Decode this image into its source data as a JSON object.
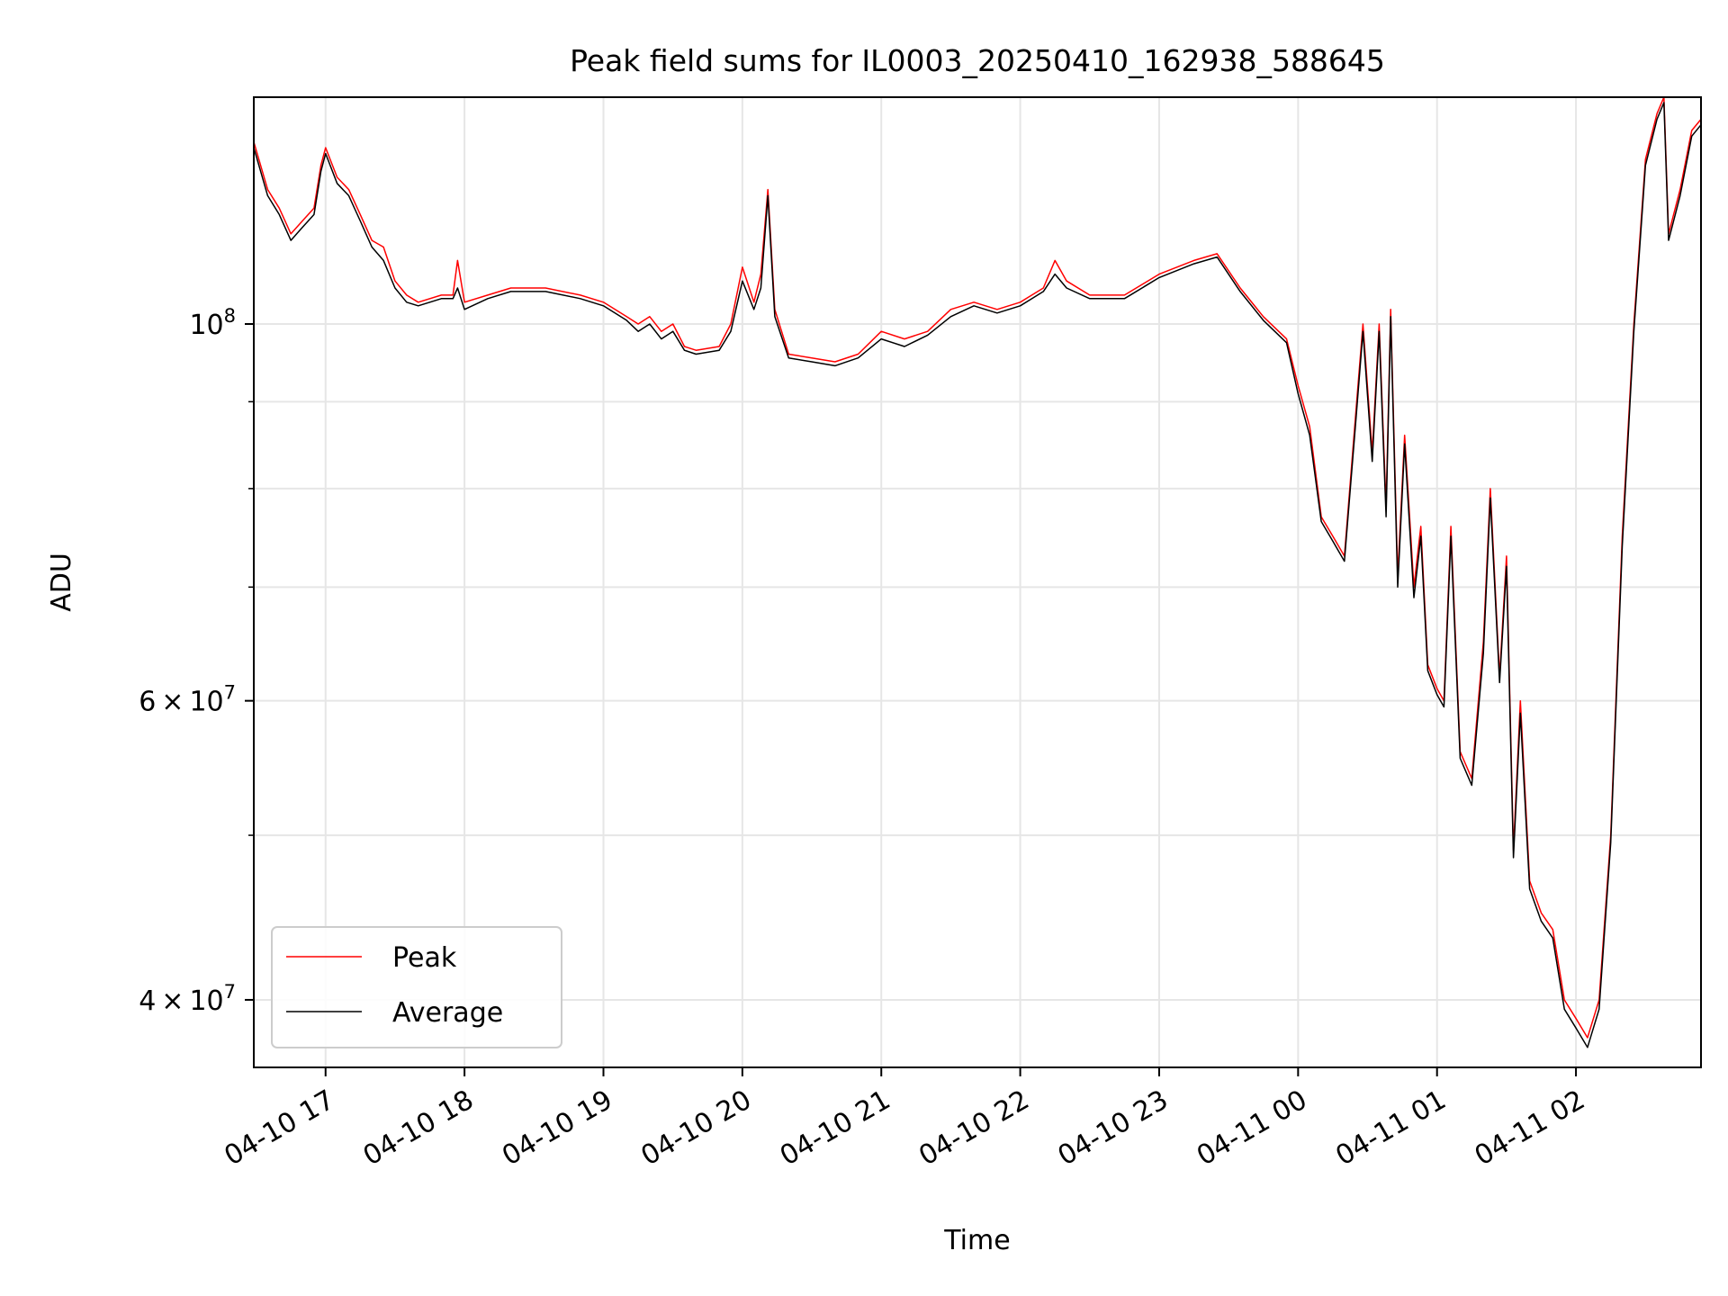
{
  "chart_data": {
    "type": "line",
    "title": "Peak field sums for IL0003_20250410_162938_588645",
    "xlabel": "Time",
    "ylabel": "ADU",
    "yscale": "log",
    "grid": true,
    "legend_position": "lower-left",
    "xlim": [
      "2025-04-10 16:29",
      "2025-04-11 02:54"
    ],
    "ylim": [
      36500000,
      136000000
    ],
    "xticks": [
      "2025-04-10 17:00",
      "2025-04-10 18:00",
      "2025-04-10 19:00",
      "2025-04-10 20:00",
      "2025-04-10 21:00",
      "2025-04-10 22:00",
      "2025-04-10 23:00",
      "2025-04-11 00:00",
      "2025-04-11 01:00",
      "2025-04-11 02:00"
    ],
    "xtick_labels": [
      "04-10 17",
      "04-10 18",
      "04-10 19",
      "04-10 20",
      "04-10 21",
      "04-10 22",
      "04-10 23",
      "04-11 00",
      "04-11 01",
      "04-11 02"
    ],
    "yticks_major": [
      {
        "value": 100000000,
        "base": "10",
        "exp": "8"
      },
      {
        "value": 60000000,
        "mant": "6",
        "base": "10",
        "exp": "7"
      },
      {
        "value": 40000000,
        "mant": "4",
        "base": "10",
        "exp": "7"
      }
    ],
    "yticks_minor": [
      50000000,
      70000000,
      80000000,
      90000000
    ],
    "series": [
      {
        "name": "Peak",
        "color": "#ff0000",
        "points": [
          [
            "2025-04-10 16:29",
            128000000
          ],
          [
            "2025-04-10 16:35",
            120000000
          ],
          [
            "2025-04-10 16:40",
            117000000
          ],
          [
            "2025-04-10 16:45",
            113000000
          ],
          [
            "2025-04-10 16:50",
            115000000
          ],
          [
            "2025-04-10 16:55",
            117000000
          ],
          [
            "2025-04-10 16:58",
            124000000
          ],
          [
            "2025-04-10 17:00",
            127000000
          ],
          [
            "2025-04-10 17:05",
            122000000
          ],
          [
            "2025-04-10 17:10",
            120000000
          ],
          [
            "2025-04-10 17:15",
            116000000
          ],
          [
            "2025-04-10 17:20",
            112000000
          ],
          [
            "2025-04-10 17:25",
            111000000
          ],
          [
            "2025-04-10 17:30",
            106000000
          ],
          [
            "2025-04-10 17:35",
            104000000
          ],
          [
            "2025-04-10 17:40",
            103000000
          ],
          [
            "2025-04-10 17:50",
            104000000
          ],
          [
            "2025-04-10 17:55",
            104000000
          ],
          [
            "2025-04-10 17:57",
            109000000
          ],
          [
            "2025-04-10 18:00",
            103000000
          ],
          [
            "2025-04-10 18:10",
            104000000
          ],
          [
            "2025-04-10 18:20",
            105000000
          ],
          [
            "2025-04-10 18:35",
            105000000
          ],
          [
            "2025-04-10 18:50",
            104000000
          ],
          [
            "2025-04-10 19:00",
            103000000
          ],
          [
            "2025-04-10 19:10",
            101000000
          ],
          [
            "2025-04-10 19:15",
            100000000
          ],
          [
            "2025-04-10 19:20",
            101000000
          ],
          [
            "2025-04-10 19:25",
            99000000
          ],
          [
            "2025-04-10 19:30",
            100000000
          ],
          [
            "2025-04-10 19:35",
            97000000
          ],
          [
            "2025-04-10 19:40",
            96500000
          ],
          [
            "2025-04-10 19:50",
            97000000
          ],
          [
            "2025-04-10 19:55",
            100000000
          ],
          [
            "2025-04-10 20:00",
            108000000
          ],
          [
            "2025-04-10 20:05",
            103000000
          ],
          [
            "2025-04-10 20:08",
            107000000
          ],
          [
            "2025-04-10 20:11",
            120000000
          ],
          [
            "2025-04-10 20:14",
            102000000
          ],
          [
            "2025-04-10 20:20",
            96000000
          ],
          [
            "2025-04-10 20:30",
            95500000
          ],
          [
            "2025-04-10 20:40",
            95000000
          ],
          [
            "2025-04-10 20:50",
            96000000
          ],
          [
            "2025-04-10 21:00",
            99000000
          ],
          [
            "2025-04-10 21:10",
            98000000
          ],
          [
            "2025-04-10 21:20",
            99000000
          ],
          [
            "2025-04-10 21:30",
            102000000
          ],
          [
            "2025-04-10 21:40",
            103000000
          ],
          [
            "2025-04-10 21:50",
            102000000
          ],
          [
            "2025-04-10 22:00",
            103000000
          ],
          [
            "2025-04-10 22:10",
            105000000
          ],
          [
            "2025-04-10 22:15",
            109000000
          ],
          [
            "2025-04-10 22:20",
            106000000
          ],
          [
            "2025-04-10 22:30",
            104000000
          ],
          [
            "2025-04-10 22:45",
            104000000
          ],
          [
            "2025-04-10 23:00",
            107000000
          ],
          [
            "2025-04-10 23:15",
            109000000
          ],
          [
            "2025-04-10 23:25",
            110000000
          ],
          [
            "2025-04-10 23:35",
            105000000
          ],
          [
            "2025-04-10 23:45",
            101000000
          ],
          [
            "2025-04-10 23:55",
            98000000
          ],
          [
            "2025-04-11 00:00",
            92000000
          ],
          [
            "2025-04-11 00:05",
            87000000
          ],
          [
            "2025-04-11 00:10",
            77000000
          ],
          [
            "2025-04-11 00:15",
            75000000
          ],
          [
            "2025-04-11 00:20",
            73000000
          ],
          [
            "2025-04-11 00:25",
            89000000
          ],
          [
            "2025-04-11 00:28",
            100000000
          ],
          [
            "2025-04-11 00:32",
            84000000
          ],
          [
            "2025-04-11 00:35",
            100000000
          ],
          [
            "2025-04-11 00:38",
            78000000
          ],
          [
            "2025-04-11 00:40",
            102000000
          ],
          [
            "2025-04-11 00:43",
            71000000
          ],
          [
            "2025-04-11 00:46",
            86000000
          ],
          [
            "2025-04-11 00:50",
            70000000
          ],
          [
            "2025-04-11 00:53",
            76000000
          ],
          [
            "2025-04-11 00:56",
            63000000
          ],
          [
            "2025-04-11 01:00",
            61000000
          ],
          [
            "2025-04-11 01:03",
            60000000
          ],
          [
            "2025-04-11 01:06",
            76000000
          ],
          [
            "2025-04-11 01:10",
            56000000
          ],
          [
            "2025-04-11 01:15",
            54000000
          ],
          [
            "2025-04-11 01:20",
            65000000
          ],
          [
            "2025-04-11 01:23",
            80000000
          ],
          [
            "2025-04-11 01:27",
            62000000
          ],
          [
            "2025-04-11 01:30",
            73000000
          ],
          [
            "2025-04-11 01:33",
            49000000
          ],
          [
            "2025-04-11 01:36",
            60000000
          ],
          [
            "2025-04-11 01:40",
            47000000
          ],
          [
            "2025-04-11 01:45",
            45000000
          ],
          [
            "2025-04-11 01:50",
            44000000
          ],
          [
            "2025-04-11 01:55",
            40000000
          ],
          [
            "2025-04-11 02:00",
            39000000
          ],
          [
            "2025-04-11 02:05",
            38000000
          ],
          [
            "2025-04-11 02:10",
            40000000
          ],
          [
            "2025-04-11 02:15",
            50000000
          ],
          [
            "2025-04-11 02:20",
            75000000
          ],
          [
            "2025-04-11 02:25",
            100000000
          ],
          [
            "2025-04-11 02:30",
            125000000
          ],
          [
            "2025-04-11 02:35",
            133000000
          ],
          [
            "2025-04-11 02:38",
            136000000
          ],
          [
            "2025-04-11 02:40",
            113000000
          ],
          [
            "2025-04-11 02:45",
            120000000
          ],
          [
            "2025-04-11 02:50",
            130000000
          ],
          [
            "2025-04-11 02:54",
            132000000
          ]
        ]
      },
      {
        "name": "Average",
        "color": "#000000",
        "points": [
          [
            "2025-04-10 16:29",
            127000000
          ],
          [
            "2025-04-10 16:35",
            119000000
          ],
          [
            "2025-04-10 16:40",
            116000000
          ],
          [
            "2025-04-10 16:45",
            112000000
          ],
          [
            "2025-04-10 16:50",
            114000000
          ],
          [
            "2025-04-10 16:55",
            116000000
          ],
          [
            "2025-04-10 16:58",
            123000000
          ],
          [
            "2025-04-10 17:00",
            126000000
          ],
          [
            "2025-04-10 17:05",
            121000000
          ],
          [
            "2025-04-10 17:10",
            119000000
          ],
          [
            "2025-04-10 17:15",
            115000000
          ],
          [
            "2025-04-10 17:20",
            111000000
          ],
          [
            "2025-04-10 17:25",
            109000000
          ],
          [
            "2025-04-10 17:30",
            105000000
          ],
          [
            "2025-04-10 17:35",
            103000000
          ],
          [
            "2025-04-10 17:40",
            102500000
          ],
          [
            "2025-04-10 17:50",
            103500000
          ],
          [
            "2025-04-10 17:55",
            103500000
          ],
          [
            "2025-04-10 17:57",
            105000000
          ],
          [
            "2025-04-10 18:00",
            102000000
          ],
          [
            "2025-04-10 18:10",
            103500000
          ],
          [
            "2025-04-10 18:20",
            104500000
          ],
          [
            "2025-04-10 18:35",
            104500000
          ],
          [
            "2025-04-10 18:50",
            103500000
          ],
          [
            "2025-04-10 19:00",
            102500000
          ],
          [
            "2025-04-10 19:10",
            100500000
          ],
          [
            "2025-04-10 19:15",
            99000000
          ],
          [
            "2025-04-10 19:20",
            100000000
          ],
          [
            "2025-04-10 19:25",
            98000000
          ],
          [
            "2025-04-10 19:30",
            99000000
          ],
          [
            "2025-04-10 19:35",
            96500000
          ],
          [
            "2025-04-10 19:40",
            96000000
          ],
          [
            "2025-04-10 19:50",
            96500000
          ],
          [
            "2025-04-10 19:55",
            99000000
          ],
          [
            "2025-04-10 20:00",
            106000000
          ],
          [
            "2025-04-10 20:05",
            102000000
          ],
          [
            "2025-04-10 20:08",
            105000000
          ],
          [
            "2025-04-10 20:11",
            119000000
          ],
          [
            "2025-04-10 20:14",
            101000000
          ],
          [
            "2025-04-10 20:20",
            95500000
          ],
          [
            "2025-04-10 20:30",
            95000000
          ],
          [
            "2025-04-10 20:40",
            94500000
          ],
          [
            "2025-04-10 20:50",
            95500000
          ],
          [
            "2025-04-10 21:00",
            98000000
          ],
          [
            "2025-04-10 21:10",
            97000000
          ],
          [
            "2025-04-10 21:20",
            98500000
          ],
          [
            "2025-04-10 21:30",
            101000000
          ],
          [
            "2025-04-10 21:40",
            102500000
          ],
          [
            "2025-04-10 21:50",
            101500000
          ],
          [
            "2025-04-10 22:00",
            102500000
          ],
          [
            "2025-04-10 22:10",
            104500000
          ],
          [
            "2025-04-10 22:15",
            107000000
          ],
          [
            "2025-04-10 22:20",
            105000000
          ],
          [
            "2025-04-10 22:30",
            103500000
          ],
          [
            "2025-04-10 22:45",
            103500000
          ],
          [
            "2025-04-10 23:00",
            106500000
          ],
          [
            "2025-04-10 23:15",
            108500000
          ],
          [
            "2025-04-10 23:25",
            109500000
          ],
          [
            "2025-04-10 23:35",
            104500000
          ],
          [
            "2025-04-10 23:45",
            100500000
          ],
          [
            "2025-04-10 23:55",
            97500000
          ],
          [
            "2025-04-11 00:00",
            91000000
          ],
          [
            "2025-04-11 00:05",
            86000000
          ],
          [
            "2025-04-11 00:10",
            76500000
          ],
          [
            "2025-04-11 00:15",
            74500000
          ],
          [
            "2025-04-11 00:20",
            72500000
          ],
          [
            "2025-04-11 00:25",
            88000000
          ],
          [
            "2025-04-11 00:28",
            99000000
          ],
          [
            "2025-04-11 00:32",
            83000000
          ],
          [
            "2025-04-11 00:35",
            99000000
          ],
          [
            "2025-04-11 00:38",
            77000000
          ],
          [
            "2025-04-11 00:40",
            101000000
          ],
          [
            "2025-04-11 00:43",
            70000000
          ],
          [
            "2025-04-11 00:46",
            85000000
          ],
          [
            "2025-04-11 00:50",
            69000000
          ],
          [
            "2025-04-11 00:53",
            75000000
          ],
          [
            "2025-04-11 00:56",
            62500000
          ],
          [
            "2025-04-11 01:00",
            60500000
          ],
          [
            "2025-04-11 01:03",
            59500000
          ],
          [
            "2025-04-11 01:06",
            75000000
          ],
          [
            "2025-04-11 01:10",
            55500000
          ],
          [
            "2025-04-11 01:15",
            53500000
          ],
          [
            "2025-04-11 01:20",
            64000000
          ],
          [
            "2025-04-11 01:23",
            79000000
          ],
          [
            "2025-04-11 01:27",
            61500000
          ],
          [
            "2025-04-11 01:30",
            72000000
          ],
          [
            "2025-04-11 01:33",
            48500000
          ],
          [
            "2025-04-11 01:36",
            59000000
          ],
          [
            "2025-04-11 01:40",
            46500000
          ],
          [
            "2025-04-11 01:45",
            44500000
          ],
          [
            "2025-04-11 01:50",
            43500000
          ],
          [
            "2025-04-11 01:55",
            39500000
          ],
          [
            "2025-04-11 02:00",
            38500000
          ],
          [
            "2025-04-11 02:05",
            37500000
          ],
          [
            "2025-04-11 02:10",
            39500000
          ],
          [
            "2025-04-11 02:15",
            49500000
          ],
          [
            "2025-04-11 02:20",
            74000000
          ],
          [
            "2025-04-11 02:25",
            99000000
          ],
          [
            "2025-04-11 02:30",
            124000000
          ],
          [
            "2025-04-11 02:35",
            132000000
          ],
          [
            "2025-04-11 02:38",
            135000000
          ],
          [
            "2025-04-11 02:40",
            112000000
          ],
          [
            "2025-04-11 02:45",
            119000000
          ],
          [
            "2025-04-11 02:50",
            129000000
          ],
          [
            "2025-04-11 02:54",
            131000000
          ]
        ]
      }
    ]
  }
}
